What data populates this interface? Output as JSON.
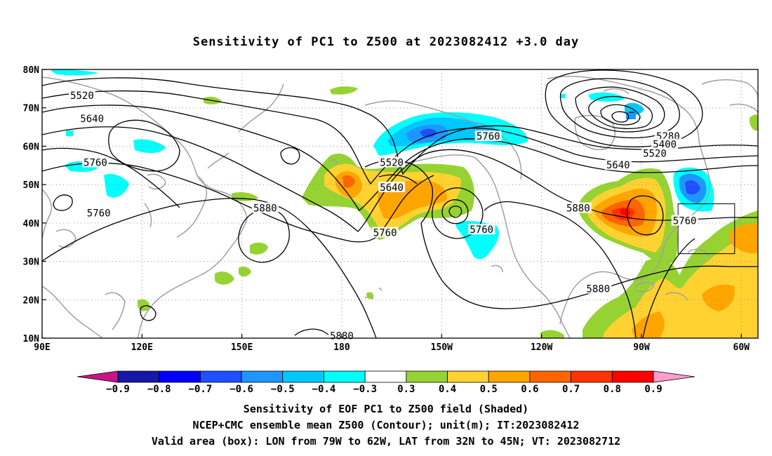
{
  "title": "Sensitivity of PC1 to Z500 at 2023082412 +3.0 day",
  "map": {
    "lon_range": [
      90,
      305
    ],
    "lat_range": [
      10,
      80
    ],
    "lat_ticks": [
      {
        "value": 80,
        "label": "80N"
      },
      {
        "value": 70,
        "label": "70N"
      },
      {
        "value": 60,
        "label": "60N"
      },
      {
        "value": 50,
        "label": "50N"
      },
      {
        "value": 40,
        "label": "40N"
      },
      {
        "value": 30,
        "label": "30N"
      },
      {
        "value": 20,
        "label": "20N"
      },
      {
        "value": 10,
        "label": "10N"
      }
    ],
    "lon_ticks": [
      {
        "value": 90,
        "label": "90E"
      },
      {
        "value": 120,
        "label": "120E"
      },
      {
        "value": 150,
        "label": "150E"
      },
      {
        "value": 180,
        "label": "180"
      },
      {
        "value": 210,
        "label": "150W"
      },
      {
        "value": 240,
        "label": "120W"
      },
      {
        "value": 270,
        "label": "90W"
      },
      {
        "value": 300,
        "label": "60W"
      }
    ],
    "gridlines": "dotted",
    "valid_box": {
      "lon_min": 281,
      "lon_max": 298,
      "lat_min": 32,
      "lat_max": 45
    },
    "contour_labels": [
      {
        "text": "5520",
        "lon": 102,
        "lat": 73.2
      },
      {
        "text": "5640",
        "lon": 105,
        "lat": 67.2
      },
      {
        "text": "5760",
        "lon": 106,
        "lat": 55.8
      },
      {
        "text": "5760",
        "lon": 107,
        "lat": 42.6
      },
      {
        "text": "5880",
        "lon": 157,
        "lat": 43.9
      },
      {
        "text": "5520",
        "lon": 195,
        "lat": 55.8
      },
      {
        "text": "5640",
        "lon": 195,
        "lat": 49.3
      },
      {
        "text": "5760",
        "lon": 193,
        "lat": 37.5
      },
      {
        "text": "5760",
        "lon": 224,
        "lat": 62.6
      },
      {
        "text": "5760",
        "lon": 222,
        "lat": 38.3
      },
      {
        "text": "5880",
        "lon": 251,
        "lat": 43.9
      },
      {
        "text": "5280",
        "lon": 278,
        "lat": 62.6
      },
      {
        "text": "5400",
        "lon": 277,
        "lat": 60.5
      },
      {
        "text": "5520",
        "lon": 274,
        "lat": 58.2
      },
      {
        "text": "5640",
        "lon": 263,
        "lat": 55.1
      },
      {
        "text": "5760",
        "lon": 283,
        "lat": 40.6
      },
      {
        "text": "5880",
        "lon": 257,
        "lat": 22.9
      },
      {
        "text": "5880",
        "lon": 180,
        "lat": 10.6
      }
    ]
  },
  "colorbar": {
    "labels": [
      "−0.9",
      "−0.8",
      "−0.7",
      "−0.6",
      "−0.5",
      "−0.4",
      "−0.3",
      "0.3",
      "0.4",
      "0.5",
      "0.6",
      "0.7",
      "0.8",
      "0.9"
    ],
    "colors": [
      "#1616a8",
      "#0000ff",
      "#1e50ff",
      "#1e96ff",
      "#00c8ff",
      "#00ffff",
      "#ffffff",
      "#96d232",
      "#ffd232",
      "#ffa500",
      "#ff6400",
      "#ff3200",
      "#ff0000"
    ],
    "low_cap": "#c71585",
    "high_cap": "#ff9ec9"
  },
  "colors": {
    "positive_green": "#96d232",
    "positive_yellow": "#ffd232",
    "positive_orange": "#ffa500",
    "positive_red": "#ff3200",
    "negative_cyan": "#00ffff",
    "negative_sky": "#00c8ff",
    "negative_blue": "#1e50ff",
    "coast": "#a0a0a0"
  },
  "captions": {
    "line1": "Sensitivity of EOF PC1 to Z500 field (Shaded)",
    "line2": "NCEP+CMC ensemble mean Z500 (Contour); unit(m); IT:2023082412",
    "line3": "Valid area (box): LON from 79W to 62W, LAT from 32N to 45N; VT: 2023082712"
  }
}
